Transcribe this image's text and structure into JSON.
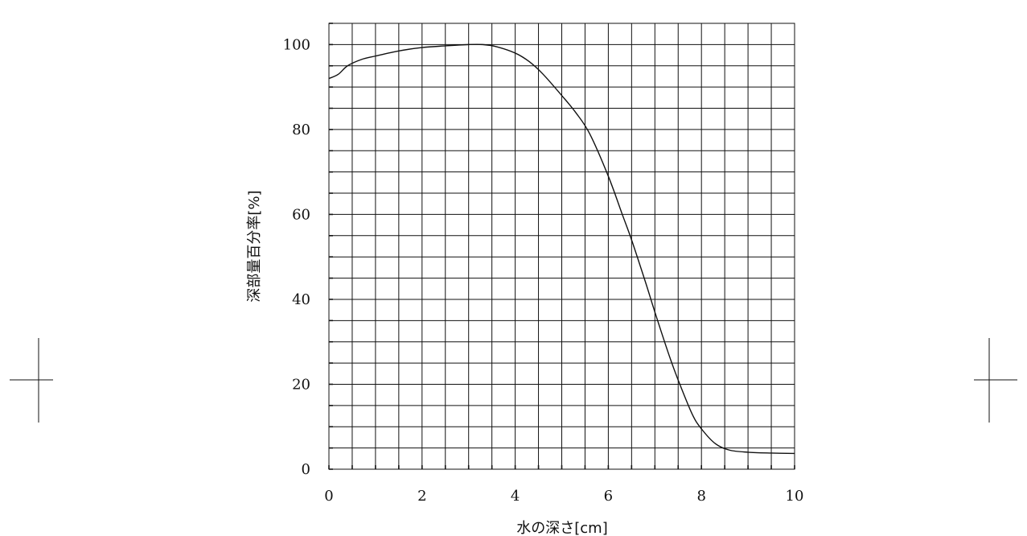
{
  "chart_data": {
    "type": "line",
    "title": "",
    "xlabel": "水の深さ[cm]",
    "ylabel": "深部量百分率[%]",
    "xlim": [
      0,
      10
    ],
    "ylim": [
      0,
      105
    ],
    "x_ticks": [
      0,
      2,
      4,
      6,
      8,
      10
    ],
    "y_ticks": [
      0,
      20,
      40,
      60,
      80,
      100
    ],
    "grid": true,
    "legend": "none",
    "series": [
      {
        "color": "#111111",
        "x": [
          0,
          0.2,
          0.4,
          0.7,
          1.0,
          1.5,
          2.0,
          2.5,
          3.0,
          3.3,
          3.6,
          4.0,
          4.3,
          4.6,
          5.0,
          5.3,
          5.6,
          6.0,
          6.3,
          6.5,
          6.8,
          7.0,
          7.3,
          7.5,
          7.8,
          8.0,
          8.3,
          8.6,
          9.0,
          9.5,
          10.0
        ],
        "y": [
          92,
          93,
          95,
          96.5,
          97.3,
          98.5,
          99.3,
          99.7,
          100,
          100,
          99.5,
          98,
          96,
          93,
          88,
          84,
          79,
          69,
          60,
          54,
          44,
          37,
          27,
          21,
          13,
          9.5,
          6,
          4.5,
          4,
          3.8,
          3.7
        ]
      }
    ]
  }
}
